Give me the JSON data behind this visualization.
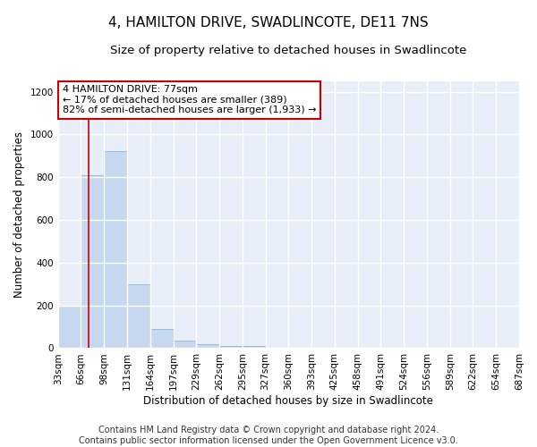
{
  "title": "4, HAMILTON DRIVE, SWADLINCOTE, DE11 7NS",
  "subtitle": "Size of property relative to detached houses in Swadlincote",
  "xlabel": "Distribution of detached houses by size in Swadlincote",
  "ylabel": "Number of detached properties",
  "bar_color": "#c5d8f0",
  "bar_edge_color": "#7aaed6",
  "annotation_box_text": "4 HAMILTON DRIVE: 77sqm\n← 17% of detached houses are smaller (389)\n82% of semi-detached houses are larger (1,933) →",
  "annotation_box_color": "#ffffff",
  "annotation_box_edge_color": "#cc0000",
  "vline_x": 77,
  "vline_color": "#cc0000",
  "bins": [
    33,
    66,
    99,
    132,
    165,
    198,
    231,
    264,
    297,
    330,
    363,
    396,
    429,
    462,
    495,
    528,
    561,
    594,
    627,
    660,
    693
  ],
  "bar_heights": [
    197,
    811,
    922,
    297,
    89,
    37,
    18,
    12,
    9,
    0,
    0,
    0,
    0,
    0,
    0,
    0,
    0,
    0,
    0,
    0
  ],
  "ylim": [
    0,
    1250
  ],
  "yticks": [
    0,
    200,
    400,
    600,
    800,
    1000,
    1200
  ],
  "xlim": [
    33,
    693
  ],
  "xtick_labels": [
    "33sqm",
    "66sqm",
    "98sqm",
    "131sqm",
    "164sqm",
    "197sqm",
    "229sqm",
    "262sqm",
    "295sqm",
    "327sqm",
    "360sqm",
    "393sqm",
    "425sqm",
    "458sqm",
    "491sqm",
    "524sqm",
    "556sqm",
    "589sqm",
    "622sqm",
    "654sqm",
    "687sqm"
  ],
  "footer_text": "Contains HM Land Registry data © Crown copyright and database right 2024.\nContains public sector information licensed under the Open Government Licence v3.0.",
  "background_color": "#ffffff",
  "plot_bg_color": "#e8eef8",
  "grid_color": "#ffffff",
  "title_fontsize": 11,
  "subtitle_fontsize": 9.5,
  "axis_label_fontsize": 8.5,
  "tick_fontsize": 7.5,
  "footer_fontsize": 7,
  "annotation_fontsize": 8
}
